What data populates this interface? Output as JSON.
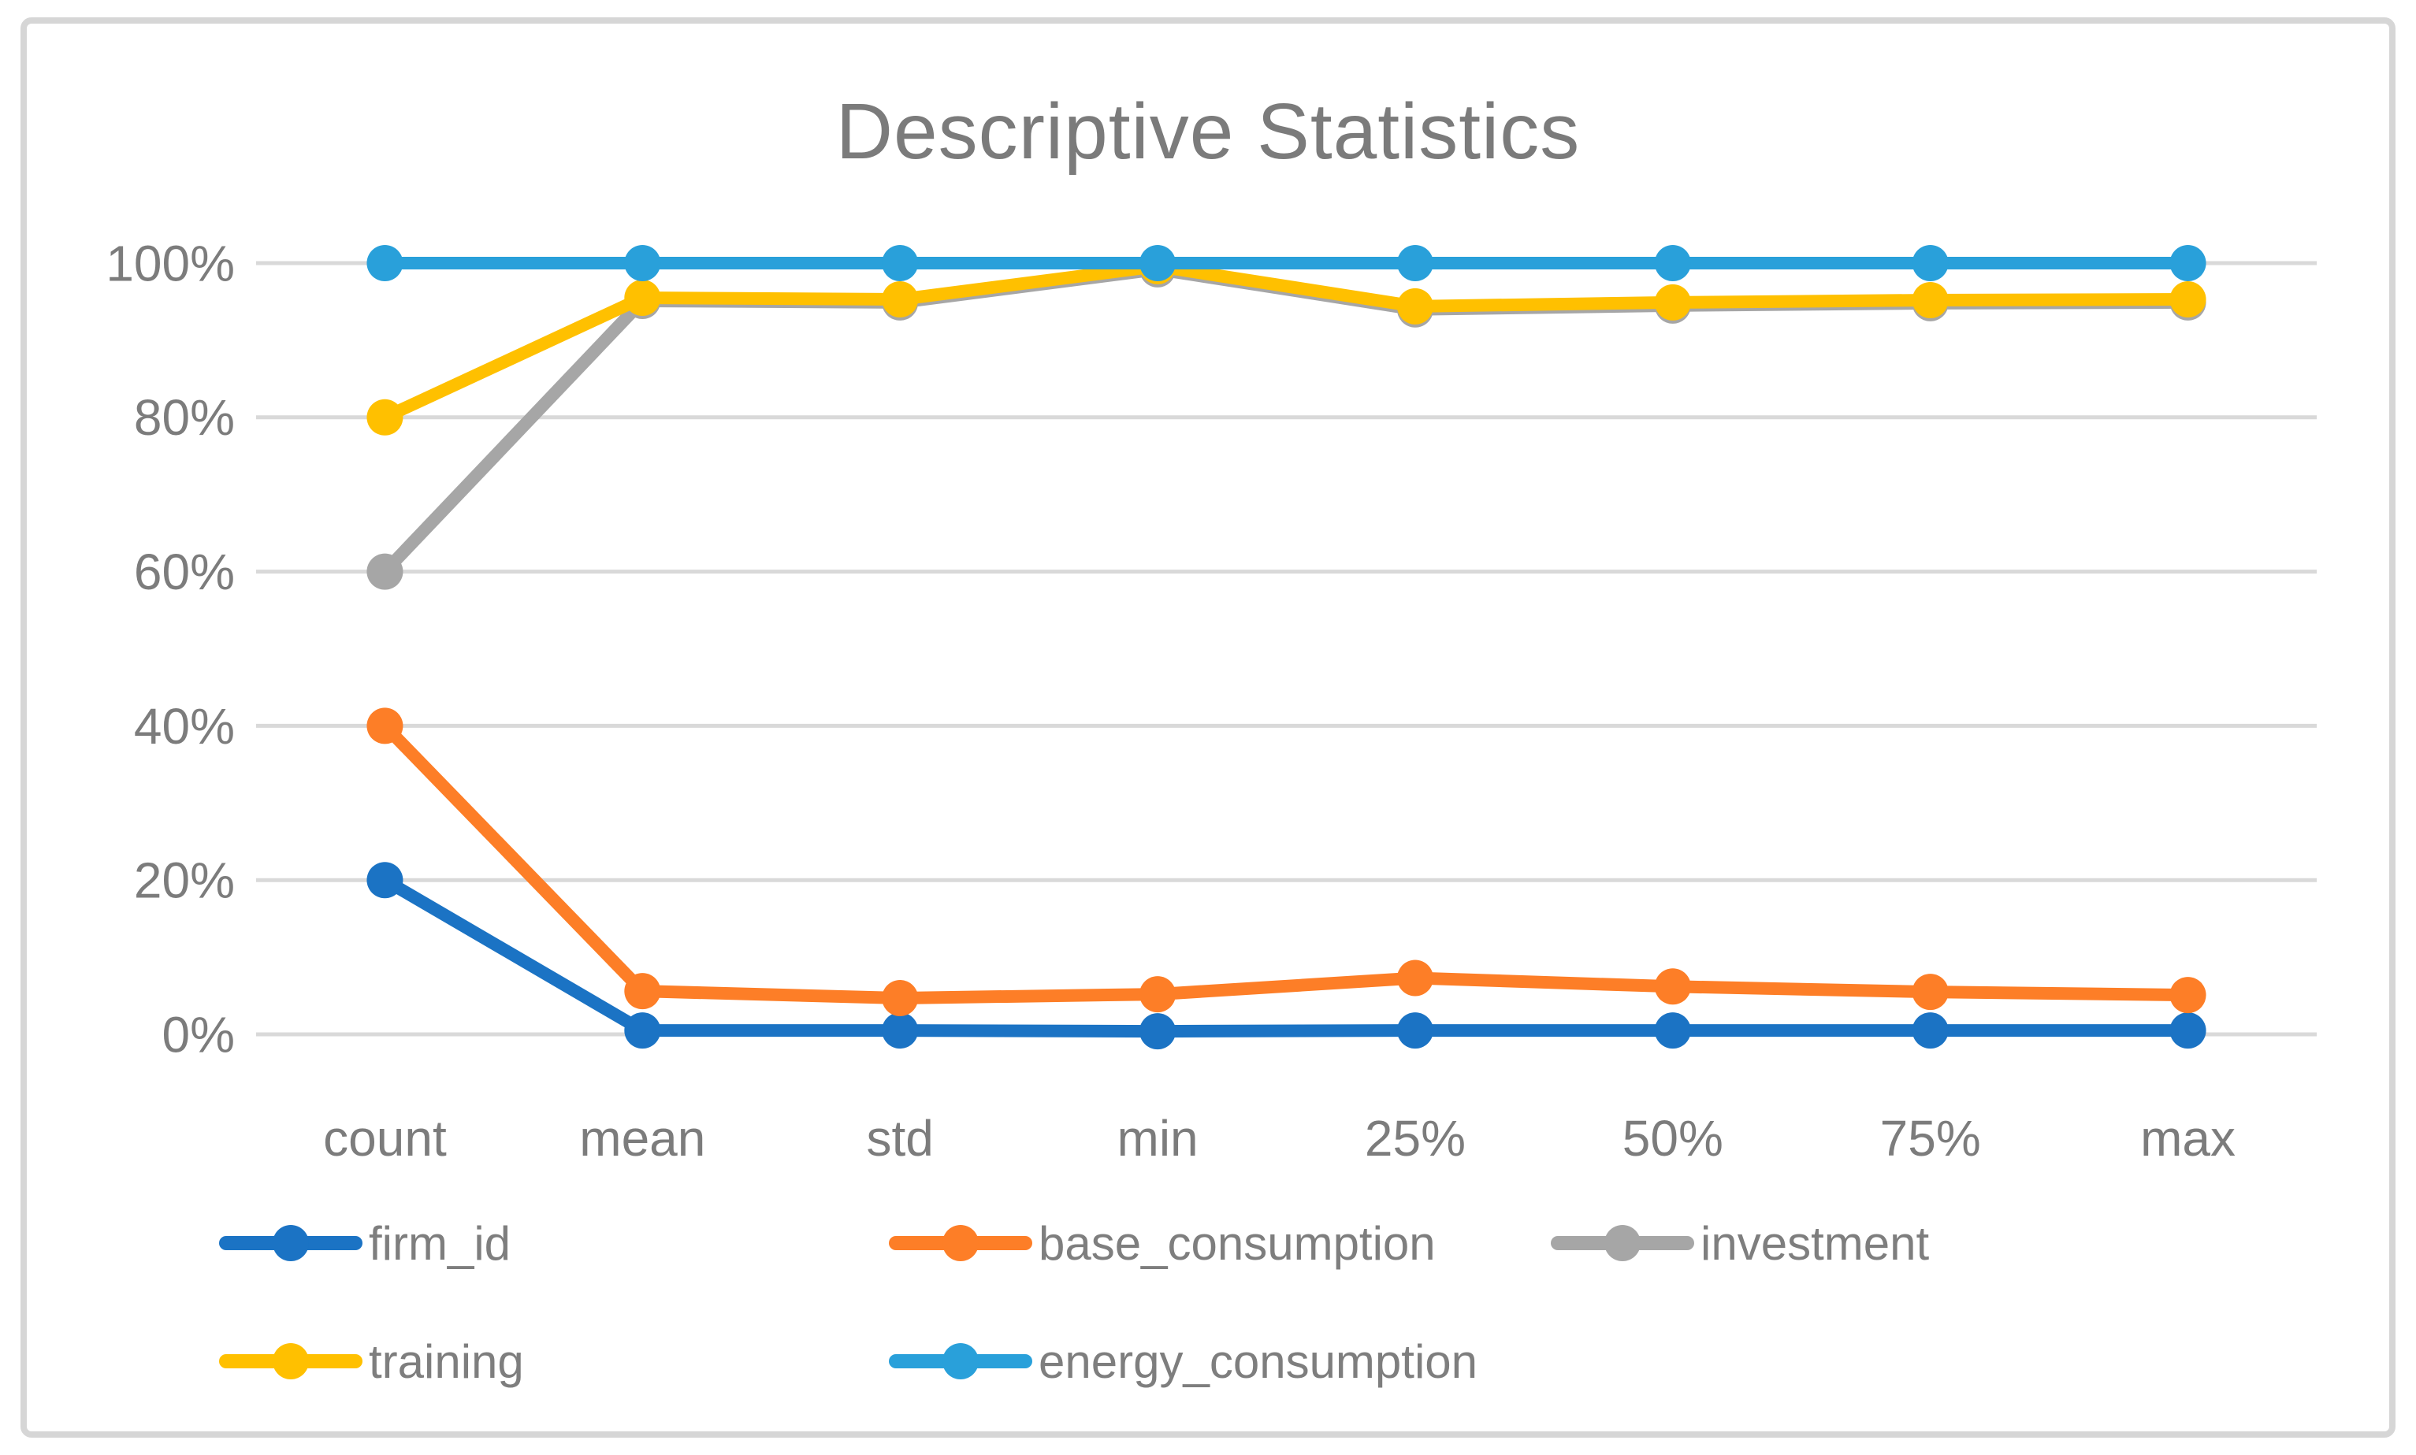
{
  "chart_data": {
    "type": "line",
    "title": "Descriptive Statistics",
    "categories": [
      "count",
      "mean",
      "std",
      "min",
      "25%",
      "50%",
      "75%",
      "max"
    ],
    "series": [
      {
        "name": "firm_id",
        "color": "#1B73C4",
        "values": [
          20,
          0.5,
          0.5,
          0.4,
          0.5,
          0.5,
          0.5,
          0.5
        ]
      },
      {
        "name": "base_consumption",
        "color": "#FD7E27",
        "values": [
          40,
          5.6,
          4.7,
          5.2,
          7.3,
          6.2,
          5.5,
          5.1
        ]
      },
      {
        "name": "investment",
        "color": "#A6A6A6",
        "values": [
          60,
          95.1,
          94.9,
          99.2,
          94.0,
          94.5,
          94.8,
          94.9
        ]
      },
      {
        "name": "training",
        "color": "#FFC000",
        "values": [
          80,
          95.5,
          95.3,
          99.6,
          94.4,
          94.9,
          95.2,
          95.3
        ]
      },
      {
        "name": "energy_consumption",
        "color": "#29A0DA",
        "values": [
          100,
          100,
          100,
          100,
          100,
          100,
          100,
          100
        ]
      }
    ],
    "y_ticks": [
      {
        "label": "100%",
        "value": 100
      },
      {
        "label": "80%",
        "value": 80
      },
      {
        "label": "60%",
        "value": 60
      },
      {
        "label": "40%",
        "value": 40
      },
      {
        "label": "20%",
        "value": 20
      },
      {
        "label": "0%",
        "value": 0
      }
    ],
    "ylim": [
      0,
      100
    ],
    "grid": true,
    "legend_position": "bottom"
  },
  "colors": {
    "background": "#FFFFFF",
    "frame": "#D6D6D6",
    "grid": "#D9D9D9",
    "title_text": "#7B7B7B",
    "axis_text": "#7C7C7C",
    "legend_text": "#7E7E7E"
  }
}
